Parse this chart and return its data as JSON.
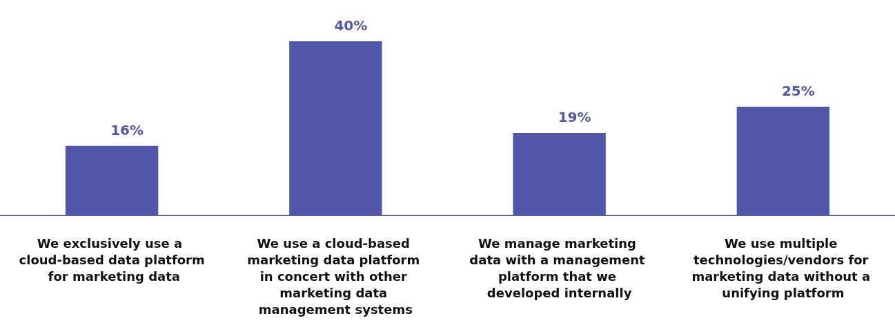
{
  "chart_data": {
    "type": "bar",
    "categories": [
      "We exclusively use a cloud-based data platform for marketing data",
      "We use a cloud-based marketing data platform in concert with other marketing data management systems",
      "We manage marketing data with a management platform that we developed internally",
      "We use multiple technologies/vendors for marketing data without a unifying platform"
    ],
    "values": [
      16,
      40,
      19,
      25
    ],
    "value_labels": [
      "16%",
      "40%",
      "19%",
      "25%"
    ],
    "color": "#5057a8"
  }
}
